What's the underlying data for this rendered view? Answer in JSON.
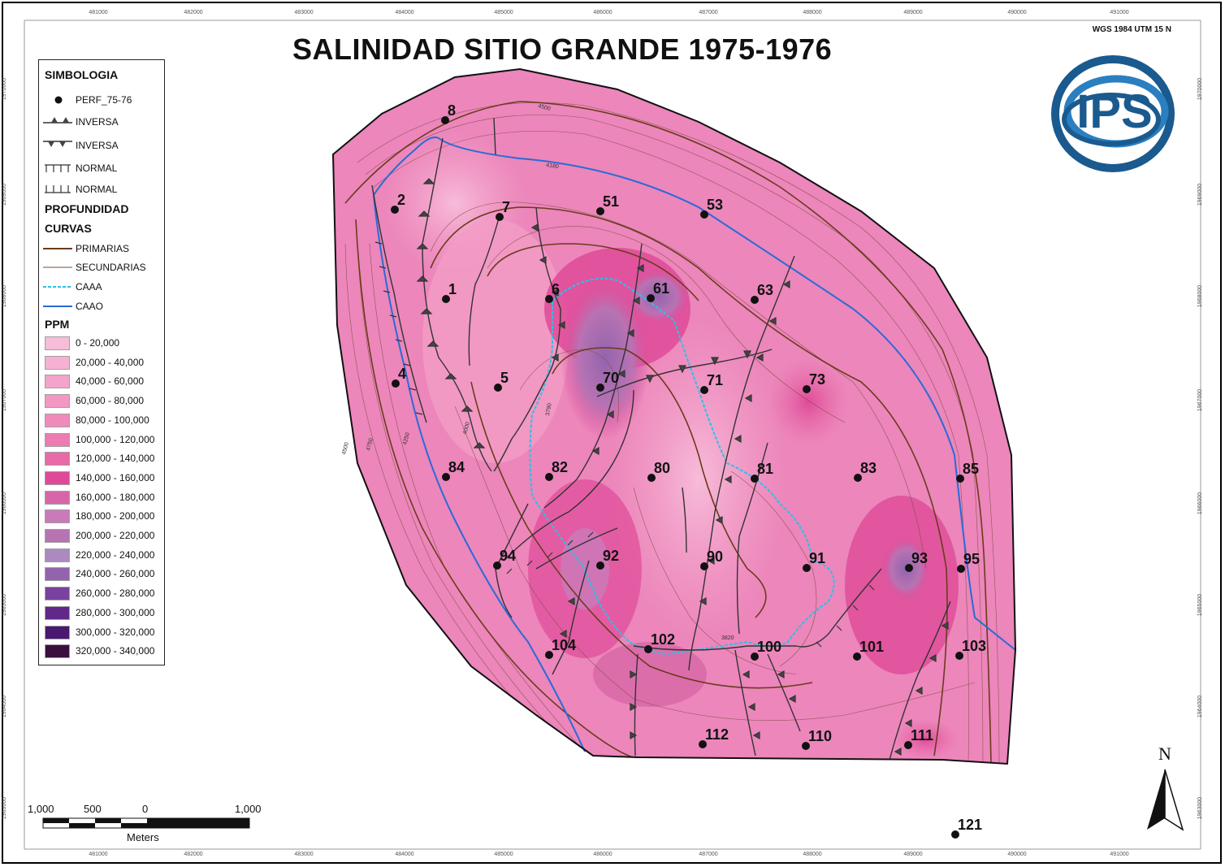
{
  "title": "SALINIDAD SITIO GRANDE 1975-1976",
  "crs": "WGS 1984 UTM 15 N",
  "logo_text": "IPS",
  "north_label": "N",
  "x_ticks": [
    "481000",
    "482000",
    "483000",
    "484000",
    "485000",
    "486000",
    "487000",
    "488000",
    "489000",
    "490000",
    "491000"
  ],
  "y_ticks": [
    "1970000",
    "1969000",
    "1968000",
    "1967000",
    "1966000",
    "1965000",
    "1964000",
    "1963000"
  ],
  "scale": {
    "labels": [
      "1,000",
      "500",
      "0",
      "1,000"
    ],
    "units": "Meters"
  },
  "legend": {
    "heading": "SIMBOLOGIA",
    "wells_label": "PERF_75-76",
    "faults": [
      "INVERSA",
      "INVERSA",
      "NORMAL",
      "NORMAL"
    ],
    "depth_heading": "PROFUNDIDAD",
    "curves_heading": "CURVAS",
    "curves": [
      "PRIMARIAS",
      "SECUNDARIAS",
      "CAAA",
      "CAAO"
    ],
    "ppm_heading": "PPM",
    "ppm_classes": [
      {
        "label": "0 - 20,000",
        "color": "#f7bcd9"
      },
      {
        "label": "20,000 - 40,000",
        "color": "#f6b1d2"
      },
      {
        "label": "40,000 - 60,000",
        "color": "#f4a4cb"
      },
      {
        "label": "60,000 - 80,000",
        "color": "#f298c3"
      },
      {
        "label": "80,000 - 100,000",
        "color": "#ef8aba"
      },
      {
        "label": "100,000 - 120,000",
        "color": "#ec7cb2"
      },
      {
        "label": "120,000 - 140,000",
        "color": "#e86aa8"
      },
      {
        "label": "140,000 - 160,000",
        "color": "#df4a98"
      },
      {
        "label": "160,000 - 180,000",
        "color": "#d766a8"
      },
      {
        "label": "180,000 - 200,000",
        "color": "#c97ab8"
      },
      {
        "label": "200,000 - 220,000",
        "color": "#b873b3"
      },
      {
        "label": "220,000 - 240,000",
        "color": "#ab8ac0"
      },
      {
        "label": "240,000 - 260,000",
        "color": "#9264ad"
      },
      {
        "label": "260,000 - 280,000",
        "color": "#7a419e"
      },
      {
        "label": "280,000 - 300,000",
        "color": "#62278a"
      },
      {
        "label": "300,000 - 320,000",
        "color": "#4a1870"
      },
      {
        "label": "320,000 - 340,000",
        "color": "#3a0f3f"
      }
    ]
  },
  "contour_labels": [
    "4500",
    "4180",
    "3790",
    "4000",
    "4250",
    "4750",
    "3820",
    "4500"
  ],
  "wells": [
    {
      "id": "8"
    },
    {
      "id": "2"
    },
    {
      "id": "7"
    },
    {
      "id": "51"
    },
    {
      "id": "53"
    },
    {
      "id": "1"
    },
    {
      "id": "6"
    },
    {
      "id": "61"
    },
    {
      "id": "63"
    },
    {
      "id": "4"
    },
    {
      "id": "5"
    },
    {
      "id": "70"
    },
    {
      "id": "71"
    },
    {
      "id": "73"
    },
    {
      "id": "84"
    },
    {
      "id": "82"
    },
    {
      "id": "80"
    },
    {
      "id": "81"
    },
    {
      "id": "83"
    },
    {
      "id": "85"
    },
    {
      "id": "94"
    },
    {
      "id": "92"
    },
    {
      "id": "90"
    },
    {
      "id": "91"
    },
    {
      "id": "93"
    },
    {
      "id": "95"
    },
    {
      "id": "104"
    },
    {
      "id": "102"
    },
    {
      "id": "100"
    },
    {
      "id": "101"
    },
    {
      "id": "103"
    },
    {
      "id": "112"
    },
    {
      "id": "110"
    },
    {
      "id": "111"
    },
    {
      "id": "121"
    }
  ]
}
